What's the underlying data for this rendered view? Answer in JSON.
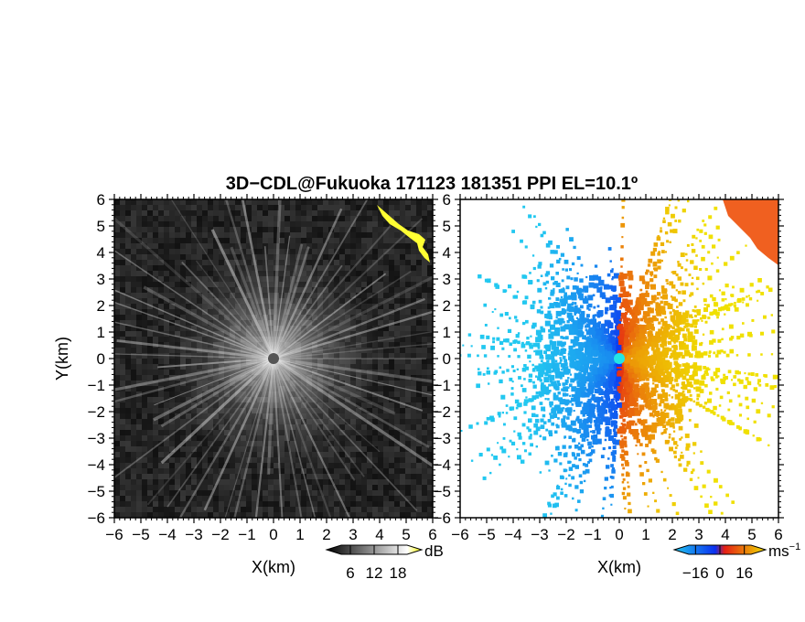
{
  "title": "3D−CDL@Fukuoka 171123 181351 PPI EL=10.1º",
  "chart_data": [
    {
      "type": "heatmap",
      "name": "panel-snr",
      "xlabel": "X(km)",
      "ylabel": "Y(km)",
      "xlim": [
        -6,
        6
      ],
      "ylim": [
        -6,
        6
      ],
      "xticks": [
        "−6",
        "−5",
        "−4",
        "−3",
        "−2",
        "−1",
        "0",
        "1",
        "2",
        "3",
        "4",
        "5",
        "6"
      ],
      "yticks": [
        "−6",
        "−5",
        "−4",
        "−3",
        "−2",
        "−1",
        "0",
        "1",
        "2",
        "3",
        "4",
        "5",
        "6"
      ],
      "colorbar": {
        "unit": "dB",
        "ticks": [
          "6",
          "12",
          "18"
        ],
        "tick_values": [
          6,
          12,
          18
        ],
        "range": [
          0,
          24
        ]
      },
      "colormap": [
        "#000000",
        "#ffffff",
        "#ffff00"
      ],
      "highlight_color": "#ffff33"
    },
    {
      "type": "heatmap",
      "name": "panel-velocity",
      "xlabel": "X(km)",
      "xlim": [
        -6,
        6
      ],
      "ylim": [
        -6,
        6
      ],
      "xticks": [
        "−6",
        "−5",
        "−4",
        "−3",
        "−2",
        "−1",
        "0",
        "1",
        "2",
        "3",
        "4",
        "5",
        "6"
      ],
      "yticks": [
        "−6",
        "−5",
        "−4",
        "−3",
        "−2",
        "−1",
        "0",
        "1",
        "2",
        "3",
        "4",
        "5",
        "6"
      ],
      "colorbar": {
        "unit": "ms",
        "unit_exp": "−1",
        "ticks": [
          "−16",
          "0",
          "16"
        ],
        "tick_values": [
          -16,
          0,
          16
        ],
        "range": [
          -30,
          30
        ]
      },
      "colormap": [
        "#22c8f0",
        "#0a2ff0",
        "#e51e14",
        "#f0e000"
      ],
      "center_marker_color": "#22e6e6"
    }
  ]
}
